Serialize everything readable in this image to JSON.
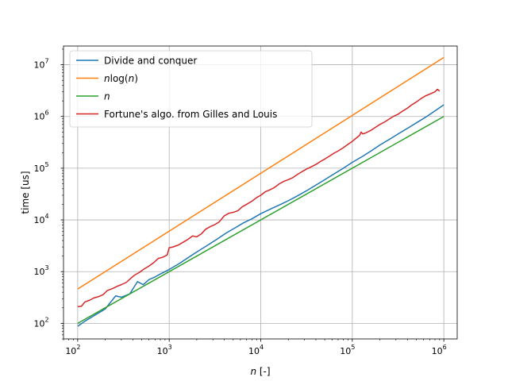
{
  "chart_data": {
    "type": "line",
    "x_scale": "log",
    "y_scale": "log",
    "xlim": [
      70,
      1400000
    ],
    "ylim": [
      50,
      23000000
    ],
    "grid": true,
    "legend_position": "top-left",
    "xlabel_parts": [
      {
        "text": "n",
        "italic": true
      },
      {
        "text": " [-]",
        "italic": false
      }
    ],
    "ylabel": "time [us]",
    "x_ticks": [
      {
        "value": 100,
        "mantissa": "10",
        "exp": "2"
      },
      {
        "value": 1000,
        "mantissa": "10",
        "exp": "3"
      },
      {
        "value": 10000,
        "mantissa": "10",
        "exp": "4"
      },
      {
        "value": 100000,
        "mantissa": "10",
        "exp": "5"
      },
      {
        "value": 1000000,
        "mantissa": "10",
        "exp": "6"
      }
    ],
    "y_ticks": [
      {
        "value": 100,
        "mantissa": "10",
        "exp": "2"
      },
      {
        "value": 1000,
        "mantissa": "10",
        "exp": "3"
      },
      {
        "value": 10000,
        "mantissa": "10",
        "exp": "4"
      },
      {
        "value": 100000,
        "mantissa": "10",
        "exp": "5"
      },
      {
        "value": 1000000,
        "mantissa": "10",
        "exp": "6"
      },
      {
        "value": 10000000,
        "mantissa": "10",
        "exp": "7"
      }
    ],
    "series": [
      {
        "name_parts": [
          {
            "text": "Divide and conquer",
            "italic": false
          }
        ],
        "color": "#1f77b4",
        "points": [
          [
            100,
            88
          ],
          [
            120,
            110
          ],
          [
            150,
            140
          ],
          [
            200,
            190
          ],
          [
            260,
            340
          ],
          [
            300,
            320
          ],
          [
            370,
            370
          ],
          [
            450,
            640
          ],
          [
            520,
            560
          ],
          [
            600,
            700
          ],
          [
            700,
            790
          ],
          [
            800,
            900
          ],
          [
            1000,
            1100
          ],
          [
            1300,
            1450
          ],
          [
            1600,
            1850
          ],
          [
            2000,
            2400
          ],
          [
            2600,
            3200
          ],
          [
            3300,
            4200
          ],
          [
            4200,
            5600
          ],
          [
            5300,
            7100
          ],
          [
            6500,
            8800
          ],
          [
            8000,
            10500
          ],
          [
            10000,
            13200
          ],
          [
            13000,
            16500
          ],
          [
            16000,
            19500
          ],
          [
            20000,
            23500
          ],
          [
            25000,
            29000
          ],
          [
            32000,
            37000
          ],
          [
            40000,
            47000
          ],
          [
            50000,
            60000
          ],
          [
            65000,
            80000
          ],
          [
            80000,
            100000
          ],
          [
            100000,
            130000
          ],
          [
            130000,
            170000
          ],
          [
            160000,
            215000
          ],
          [
            200000,
            280000
          ],
          [
            260000,
            370000
          ],
          [
            330000,
            480000
          ],
          [
            420000,
            620000
          ],
          [
            530000,
            800000
          ],
          [
            650000,
            1000000
          ],
          [
            800000,
            1280000
          ],
          [
            1000000,
            1680000
          ]
        ]
      },
      {
        "name_parts": [
          {
            "text": "n",
            "italic": true
          },
          {
            "text": "log(",
            "italic": false
          },
          {
            "text": "n",
            "italic": true
          },
          {
            "text": ")",
            "italic": false
          }
        ],
        "color": "#ff7f0e",
        "points": [
          [
            100,
            460.5
          ],
          [
            1000000,
            13815510
          ]
        ]
      },
      {
        "name_parts": [
          {
            "text": "n",
            "italic": true
          }
        ],
        "color": "#2ca02c",
        "points": [
          [
            100,
            100
          ],
          [
            1000000,
            1000000
          ]
        ]
      },
      {
        "name_parts": [
          {
            "text": "Fortune's algo. from Gilles and Louis",
            "italic": false
          }
        ],
        "color": "#d62728",
        "points": [
          [
            100,
            210
          ],
          [
            110,
            215
          ],
          [
            120,
            260
          ],
          [
            135,
            280
          ],
          [
            150,
            310
          ],
          [
            170,
            330
          ],
          [
            190,
            360
          ],
          [
            210,
            430
          ],
          [
            240,
            470
          ],
          [
            270,
            520
          ],
          [
            300,
            560
          ],
          [
            340,
            620
          ],
          [
            380,
            740
          ],
          [
            420,
            860
          ],
          [
            470,
            960
          ],
          [
            530,
            1120
          ],
          [
            600,
            1280
          ],
          [
            680,
            1500
          ],
          [
            760,
            1800
          ],
          [
            850,
            1900
          ],
          [
            950,
            2100
          ],
          [
            1000,
            2900
          ],
          [
            1100,
            3000
          ],
          [
            1250,
            3250
          ],
          [
            1400,
            3650
          ],
          [
            1600,
            4200
          ],
          [
            1800,
            4900
          ],
          [
            2000,
            4700
          ],
          [
            2250,
            5400
          ],
          [
            2500,
            6600
          ],
          [
            2800,
            7400
          ],
          [
            3100,
            8000
          ],
          [
            3500,
            9100
          ],
          [
            4000,
            12000
          ],
          [
            4500,
            13500
          ],
          [
            5000,
            14000
          ],
          [
            5600,
            15000
          ],
          [
            6300,
            18000
          ],
          [
            7000,
            20000
          ],
          [
            8000,
            23000
          ],
          [
            9000,
            27000
          ],
          [
            10000,
            30000
          ],
          [
            11200,
            35000
          ],
          [
            12500,
            38000
          ],
          [
            14000,
            42000
          ],
          [
            16000,
            50000
          ],
          [
            18000,
            56000
          ],
          [
            20000,
            60000
          ],
          [
            22500,
            66000
          ],
          [
            25000,
            75000
          ],
          [
            28000,
            85000
          ],
          [
            31500,
            96000
          ],
          [
            35000,
            105000
          ],
          [
            40000,
            118000
          ],
          [
            45000,
            135000
          ],
          [
            50000,
            150000
          ],
          [
            56000,
            170000
          ],
          [
            63000,
            195000
          ],
          [
            70000,
            215000
          ],
          [
            80000,
            250000
          ],
          [
            90000,
            290000
          ],
          [
            100000,
            330000
          ],
          [
            110000,
            380000
          ],
          [
            120000,
            430000
          ],
          [
            125000,
            500000
          ],
          [
            130000,
            460000
          ],
          [
            140000,
            480000
          ],
          [
            160000,
            540000
          ],
          [
            180000,
            620000
          ],
          [
            200000,
            700000
          ],
          [
            225000,
            780000
          ],
          [
            250000,
            880000
          ],
          [
            280000,
            1000000
          ],
          [
            315000,
            1100000
          ],
          [
            350000,
            1250000
          ],
          [
            400000,
            1450000
          ],
          [
            450000,
            1700000
          ],
          [
            500000,
            1900000
          ],
          [
            560000,
            2200000
          ],
          [
            630000,
            2500000
          ],
          [
            700000,
            2700000
          ],
          [
            800000,
            3000000
          ],
          [
            850000,
            3350000
          ],
          [
            900000,
            3100000
          ]
        ]
      }
    ]
  }
}
